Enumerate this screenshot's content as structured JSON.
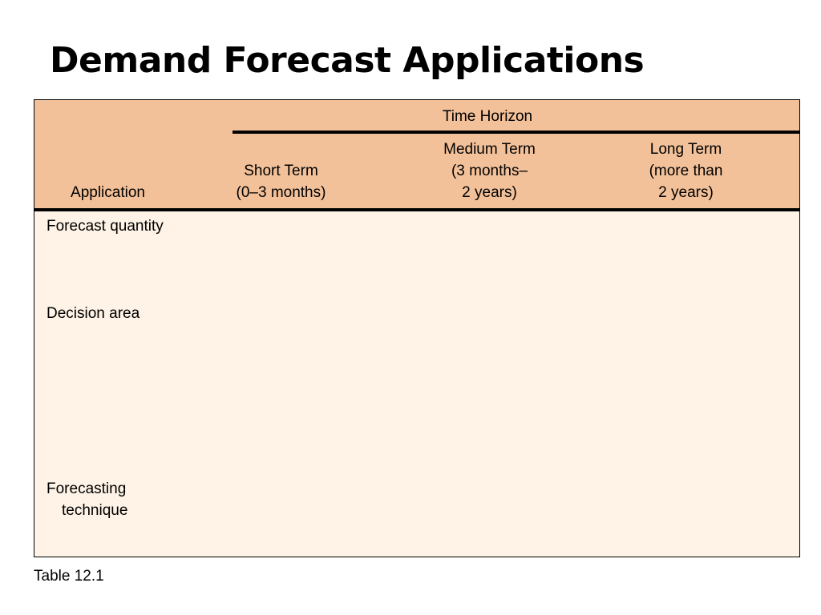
{
  "title": "Demand Forecast Applications",
  "table": {
    "header": {
      "group_label": "Time Horizon",
      "application_label": "Application",
      "short_term": {
        "line1": "Short Term",
        "line2": "(0–3 months)"
      },
      "medium_term": {
        "line1": "Medium Term",
        "line2": "(3 months–",
        "line3": "2 years)"
      },
      "long_term": {
        "line1": "Long Term",
        "line2": "(more than",
        "line3": "2 years)"
      }
    },
    "rows": [
      {
        "label": "Forecast quantity"
      },
      {
        "label": "Decision area"
      },
      {
        "label_line1": "Forecasting",
        "label_line2": "technique"
      }
    ]
  },
  "caption": "Table 12.1",
  "colors": {
    "header_fill": "#f3c199",
    "body_fill": "#fef3e6"
  }
}
